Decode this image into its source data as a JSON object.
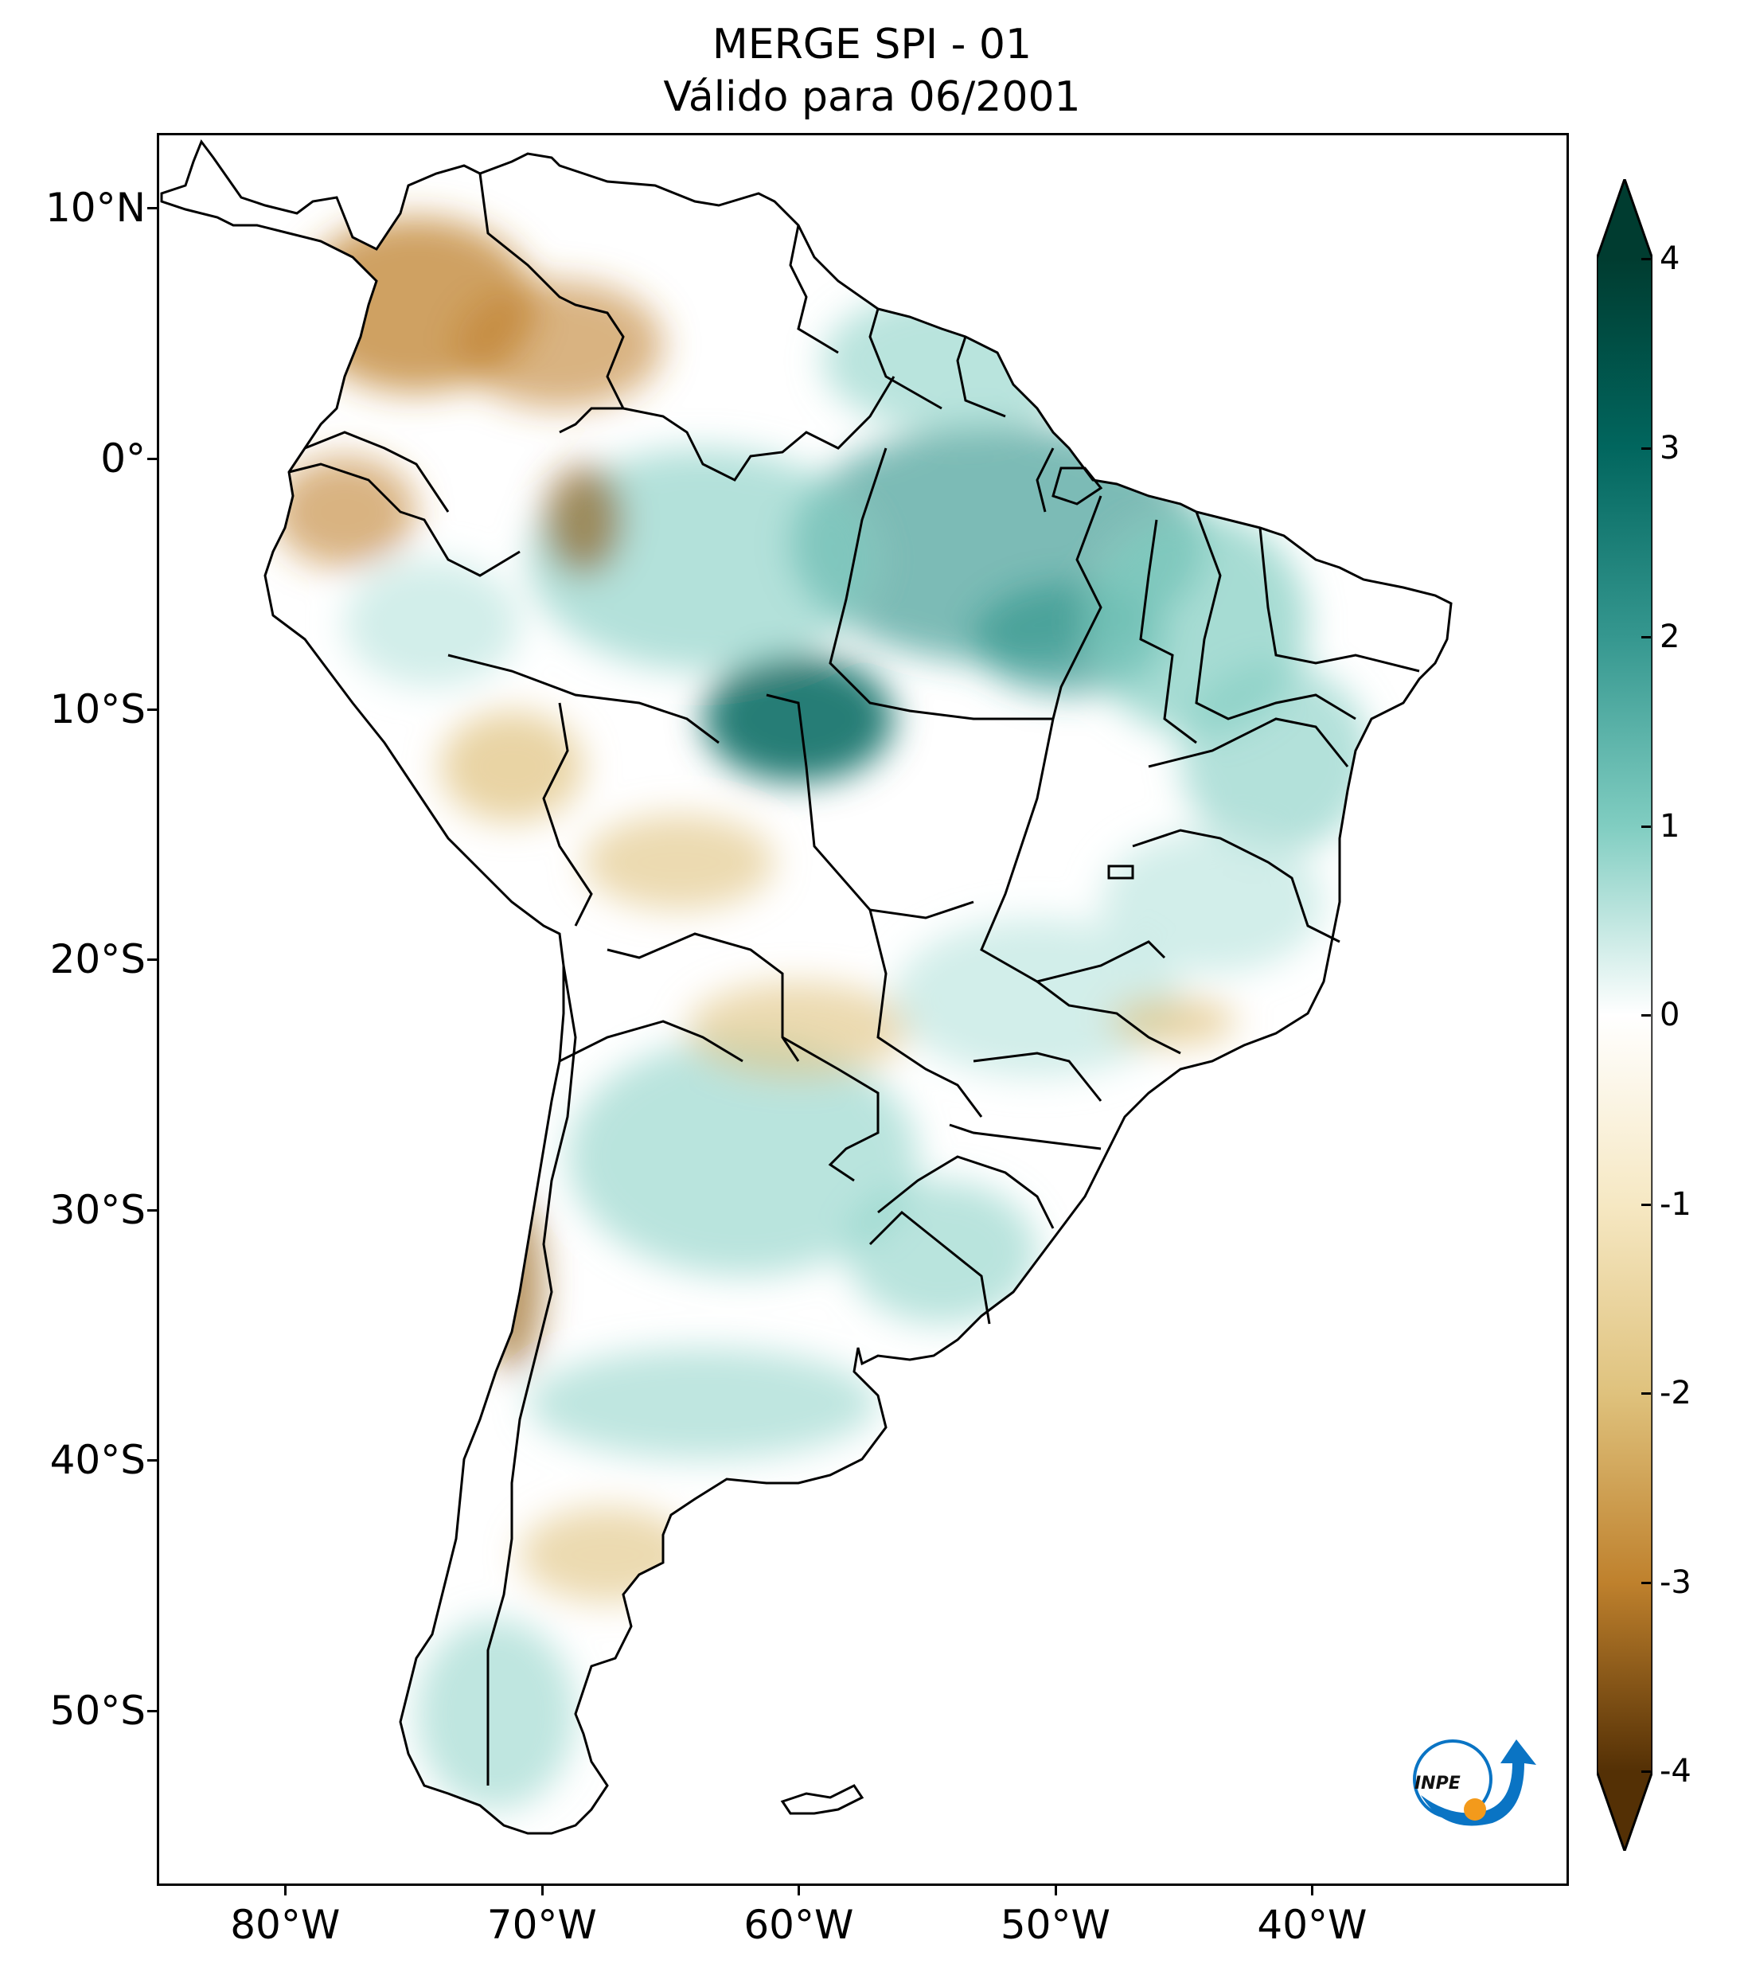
{
  "title": {
    "line1": "MERGE   SPI - 01",
    "line2": "Válido para 06/2001"
  },
  "map": {
    "lon_range": [
      -85,
      -30
    ],
    "lat_range": [
      -57,
      13
    ],
    "lat_ticks": [
      {
        "value": 10,
        "label": "10°N"
      },
      {
        "value": 0,
        "label": "0°"
      },
      {
        "value": -10,
        "label": "10°S"
      },
      {
        "value": -20,
        "label": "20°S"
      },
      {
        "value": -30,
        "label": "30°S"
      },
      {
        "value": -40,
        "label": "40°S"
      },
      {
        "value": -50,
        "label": "50°S"
      }
    ],
    "lon_ticks": [
      {
        "value": -80,
        "label": "80°W"
      },
      {
        "value": -70,
        "label": "70°W"
      },
      {
        "value": -60,
        "label": "60°W"
      },
      {
        "value": -50,
        "label": "50°W"
      },
      {
        "value": -40,
        "label": "40°W"
      }
    ]
  },
  "colorbar": {
    "min": -4,
    "max": 4,
    "extend": "both",
    "ticks": [
      {
        "value": 4,
        "label": "4"
      },
      {
        "value": 3,
        "label": "3"
      },
      {
        "value": 2,
        "label": "2"
      },
      {
        "value": 1,
        "label": "1"
      },
      {
        "value": 0,
        "label": "0"
      },
      {
        "value": -1,
        "label": "-1"
      },
      {
        "value": -2,
        "label": "-2"
      },
      {
        "value": -3,
        "label": "-3"
      },
      {
        "value": -4,
        "label": "-4"
      }
    ],
    "colors": {
      "dry_extreme": "#543005",
      "dry_strong": "#8c510a",
      "dry_moderate": "#bf812d",
      "dry_light": "#dfc27d",
      "dry_slight": "#f6e8c3",
      "neutral": "#ffffff",
      "wet_slight": "#c7eae5",
      "wet_light": "#80cdc1",
      "wet_moderate": "#35978f",
      "wet_strong": "#01665e",
      "wet_extreme": "#003c30"
    }
  },
  "logo": {
    "text": "INPE",
    "arrow_color": "#0a74c4",
    "dot_color": "#f39a1b"
  }
}
